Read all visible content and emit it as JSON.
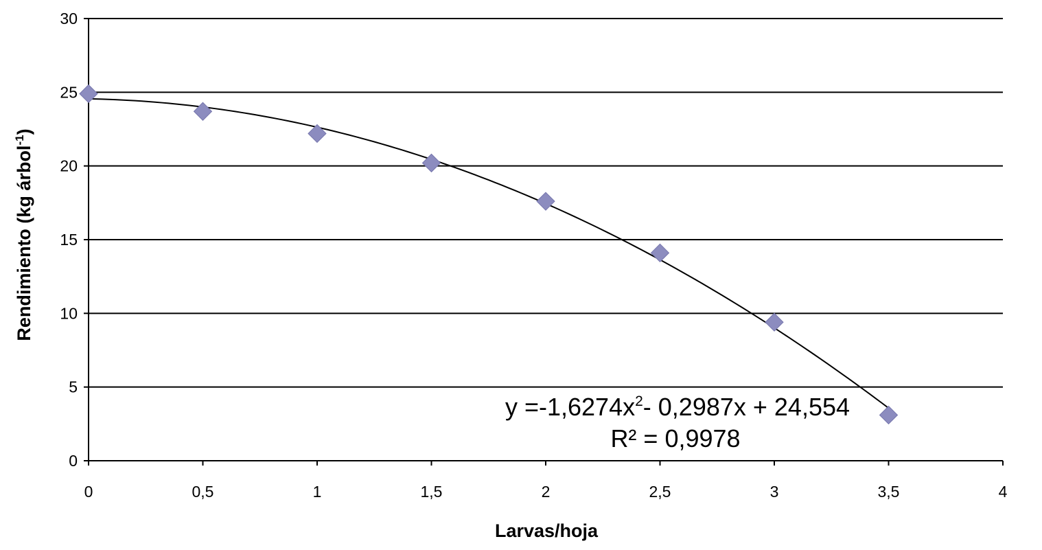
{
  "chart_data": {
    "type": "scatter",
    "xlabel": "Larvas/hoja",
    "ylabel": "Rendimiento (kg árbol",
    "ylabel_superscript": "-1",
    "ylabel_suffix": ")",
    "xlim": [
      0,
      4
    ],
    "ylim": [
      0,
      30
    ],
    "x_ticks": [
      "0",
      "0,5",
      "1",
      "1,5",
      "2",
      "2,5",
      "3",
      "3,5",
      "4"
    ],
    "y_ticks": [
      "0",
      "5",
      "10",
      "15",
      "20",
      "25",
      "30"
    ],
    "grid": "horizontal",
    "marker": "diamond",
    "marker_color": "#8c8cbf",
    "series": [
      {
        "x": [
          0,
          0.5,
          1,
          1.5,
          2,
          2.5,
          3,
          3.5
        ],
        "y": [
          24.9,
          23.7,
          22.2,
          20.2,
          17.6,
          14.1,
          9.4,
          3.1
        ]
      }
    ],
    "trendline": {
      "type": "polynomial",
      "coefficients": {
        "a": -1.6274,
        "b": -0.2987,
        "c": 24.554
      },
      "x_range": [
        0,
        3.5
      ],
      "equation_parts": [
        "y =-1,6274x",
        "2",
        "- 0,2987x + 24,554"
      ],
      "r2_label": "R² = 0,9978"
    }
  }
}
